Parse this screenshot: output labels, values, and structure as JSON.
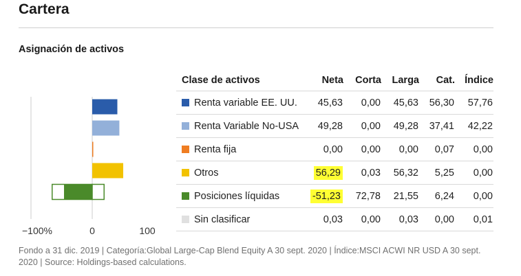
{
  "page_title": "Cartera",
  "section_title": "Asignación de activos",
  "table": {
    "headers": [
      "Clase de activos",
      "Neta",
      "Corta",
      "Larga",
      "Cat.",
      "Índice"
    ],
    "rows": [
      {
        "name": "Renta variable EE. UU.",
        "color": "#2a5caa",
        "neta": "45,63",
        "corta": "0,00",
        "larga": "45,63",
        "cat": "56,30",
        "indice": "57,76",
        "highlight": false
      },
      {
        "name": "Renta Variable No-USA",
        "color": "#93b0d9",
        "neta": "49,28",
        "corta": "0,00",
        "larga": "49,28",
        "cat": "37,41",
        "indice": "42,22",
        "highlight": false
      },
      {
        "name": "Renta fija",
        "color": "#ef7d22",
        "neta": "0,00",
        "corta": "0,00",
        "larga": "0,00",
        "cat": "0,07",
        "indice": "0,00",
        "highlight": false
      },
      {
        "name": "Otros",
        "color": "#f2c200",
        "neta": "56,29",
        "corta": "0,03",
        "larga": "56,32",
        "cat": "5,25",
        "indice": "0,00",
        "highlight": true
      },
      {
        "name": "Posiciones líquidas",
        "color": "#4a8a2a",
        "neta": "-51,23",
        "corta": "72,78",
        "larga": "21,55",
        "cat": "6,24",
        "indice": "0,00",
        "highlight": true
      },
      {
        "name": "Sin clasificar",
        "color": "#e0e0e0",
        "neta": "0,03",
        "corta": "0,00",
        "larga": "0,03",
        "cat": "0,00",
        "indice": "0,01",
        "highlight": false
      }
    ]
  },
  "chart_data": {
    "type": "bar",
    "orientation": "horizontal",
    "categories": [
      "Renta variable EE. UU.",
      "Renta Variable No-USA",
      "Renta fija",
      "Otros",
      "Posiciones líquidas",
      "Sin clasificar"
    ],
    "series": [
      {
        "values": [
          45.63,
          49.28,
          0.0,
          56.29,
          -51.23,
          0.03
        ]
      }
    ],
    "long": [
      45.63,
      49.28,
      0.0,
      56.32,
      21.55,
      0.03
    ],
    "short": [
      0.0,
      0.0,
      0.0,
      0.03,
      72.78,
      0.0
    ],
    "colors": [
      "#2a5caa",
      "#93b0d9",
      "#ef7d22",
      "#f2c200",
      "#4a8a2a",
      "#e0e0e0"
    ],
    "xlim": [
      -100,
      100
    ],
    "ticks": [
      -100,
      0,
      100
    ],
    "tick_labels": [
      "−100%",
      "0",
      "100"
    ],
    "grid": false
  },
  "footnote": "Fondo a 31 dic. 2019 | Categoría:Global Large-Cap Blend Equity A 30 sept. 2020 | Índice:MSCI ACWI NR USD A 30 sept. 2020 | Source: Holdings-based calculations."
}
